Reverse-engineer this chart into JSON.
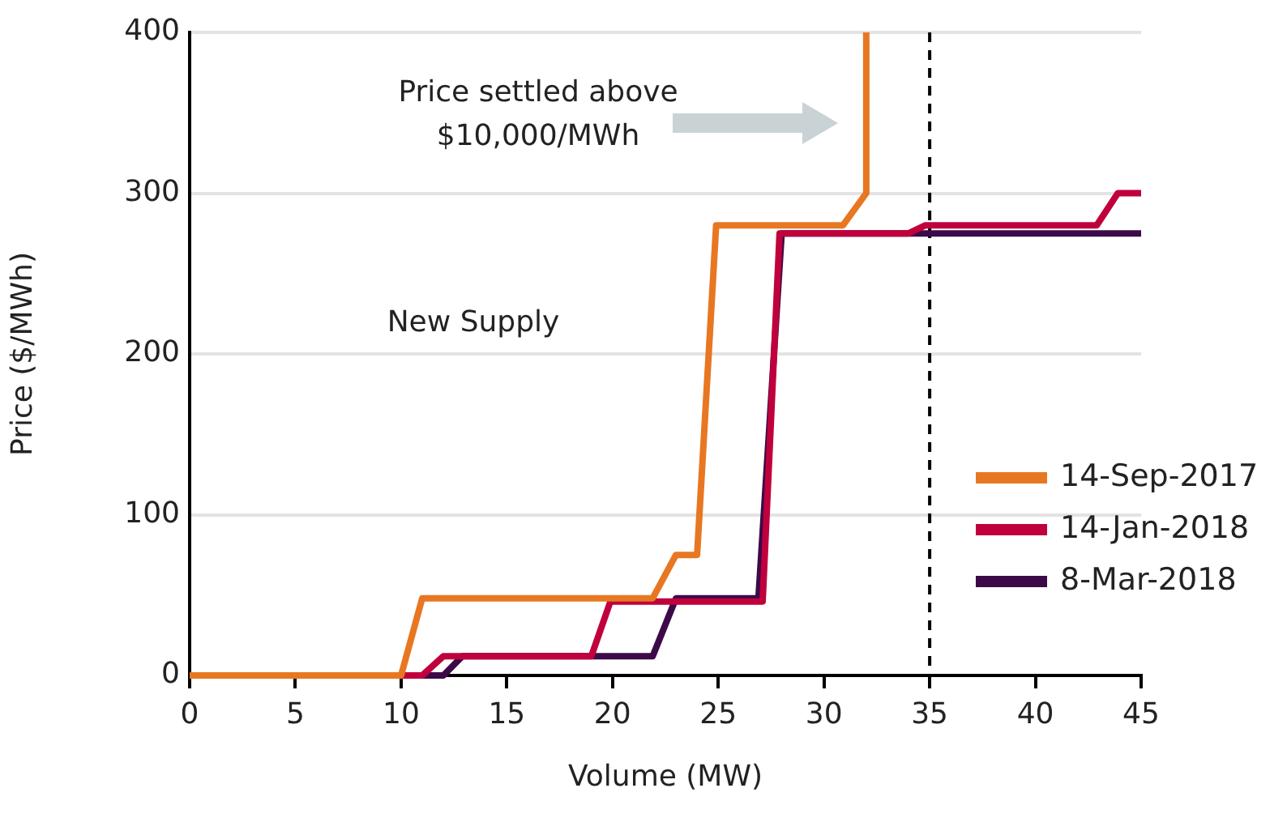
{
  "chart_data": {
    "type": "line",
    "xlabel": "Volume (MW)",
    "ylabel": "Price ($/MWh)",
    "xlim": [
      0,
      45
    ],
    "xticks": [
      0,
      5,
      10,
      15,
      20,
      25,
      30,
      35,
      40,
      45
    ],
    "ylim": [
      0,
      400
    ],
    "yticks": [
      0,
      100,
      200,
      300,
      400
    ],
    "grid": "y",
    "legend": "bottom right",
    "marker": "none",
    "line_style": "solid",
    "ref_lines": [
      {
        "axis": "x",
        "value": 35,
        "color": "#000000",
        "line_style": "dashed"
      }
    ],
    "annotations": [
      "Price settled above $10,000/MWh",
      "New Supply"
    ],
    "series": [
      {
        "name": "14-Sep-2017",
        "color": "#e87722",
        "x": [
          0,
          10,
          11,
          21.9,
          23,
          24,
          24.9,
          30.9,
          32,
          32
        ],
        "values": [
          0,
          0,
          48,
          48,
          75,
          75,
          280,
          280,
          300,
          400
        ]
      },
      {
        "name": "14-Jan-2018",
        "color": "#c0003c",
        "x": [
          0,
          11,
          12,
          19,
          19.9,
          27.1,
          27.9,
          34,
          34.8,
          42.9,
          43.9,
          45
        ],
        "values": [
          0,
          0,
          12,
          12,
          46,
          46,
          275,
          275,
          280,
          280,
          300,
          300
        ]
      },
      {
        "name": "8-Mar-2018",
        "color": "#3c0a49",
        "x": [
          0,
          12,
          12.9,
          21.9,
          23,
          26.9,
          28,
          45
        ],
        "values": [
          0,
          0,
          12,
          12,
          48,
          48,
          275,
          275
        ]
      }
    ]
  }
}
